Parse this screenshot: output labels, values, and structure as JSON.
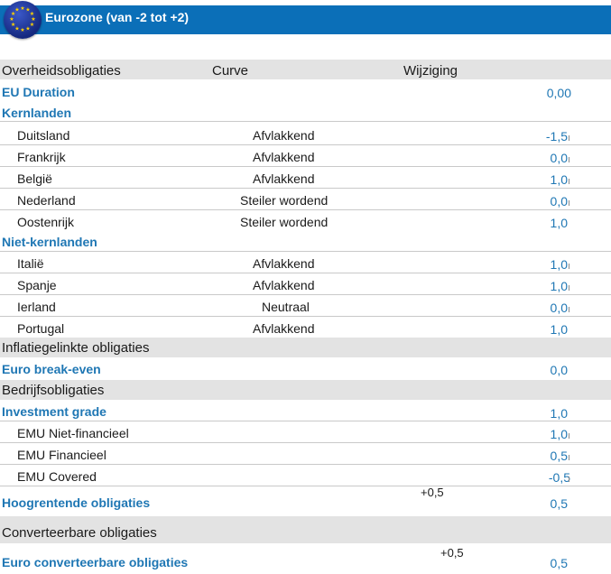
{
  "banner": {
    "title": "Eurozone (van -2 tot +2)",
    "flag_icon": "eu-flag-icon",
    "color": "#0b6fb8"
  },
  "columns": {
    "c1": "Overheidsobligaties",
    "c2": "Curve",
    "c3": "Wijziging"
  },
  "rows": {
    "eu_duration": {
      "label": "EU Duration",
      "value": "0,00"
    },
    "kernlanden": {
      "label": "Kernlanden"
    },
    "duitsland": {
      "label": "Duitsland",
      "curve": "Afvlakkend",
      "value": "-1,5"
    },
    "frankrijk": {
      "label": "Frankrijk",
      "curve": "Afvlakkend",
      "value": "0,0"
    },
    "belgie": {
      "label": "België",
      "curve": "Afvlakkend",
      "value": "1,0"
    },
    "nederland": {
      "label": "Nederland",
      "curve": "Steiler wordend",
      "value": "0,0"
    },
    "oostenrijk": {
      "label": "Oostenrijk",
      "curve": "Steiler wordend",
      "value": "1,0"
    },
    "niet_kernlanden": {
      "label": "Niet-kernlanden"
    },
    "italie": {
      "label": "Italië",
      "curve": "Afvlakkend",
      "value": "1,0"
    },
    "spanje": {
      "label": "Spanje",
      "curve": "Afvlakkend",
      "value": "1,0"
    },
    "ierland": {
      "label": "Ierland",
      "curve": "Neutraal",
      "value": "0,0"
    },
    "portugal": {
      "label": "Portugal",
      "curve": "Afvlakkend",
      "value": "1,0"
    },
    "inflatie": {
      "label": "Inflatiegelinkte obligaties"
    },
    "euro_breakeven": {
      "label": "Euro break-even",
      "value": "0,0"
    },
    "bedrijf": {
      "label": "Bedrijfsobligaties"
    },
    "investment_grade": {
      "label": "Investment grade",
      "value": "1,0"
    },
    "emu_niet_fin": {
      "label": "EMU Niet-financieel",
      "value": "1,0"
    },
    "emu_fin": {
      "label": "EMU Financieel",
      "value": "0,5"
    },
    "emu_covered": {
      "label": "EMU Covered",
      "value": "-0,5"
    },
    "hoogrentend": {
      "label": "Hoogrentende obligaties",
      "change": "+0,5",
      "value": "0,5"
    },
    "converteerbaar": {
      "label": "Converteerbare obligaties"
    },
    "euro_conv": {
      "label": "Euro converteerbare obligaties",
      "change": "+0,5",
      "value": "0,5"
    }
  }
}
